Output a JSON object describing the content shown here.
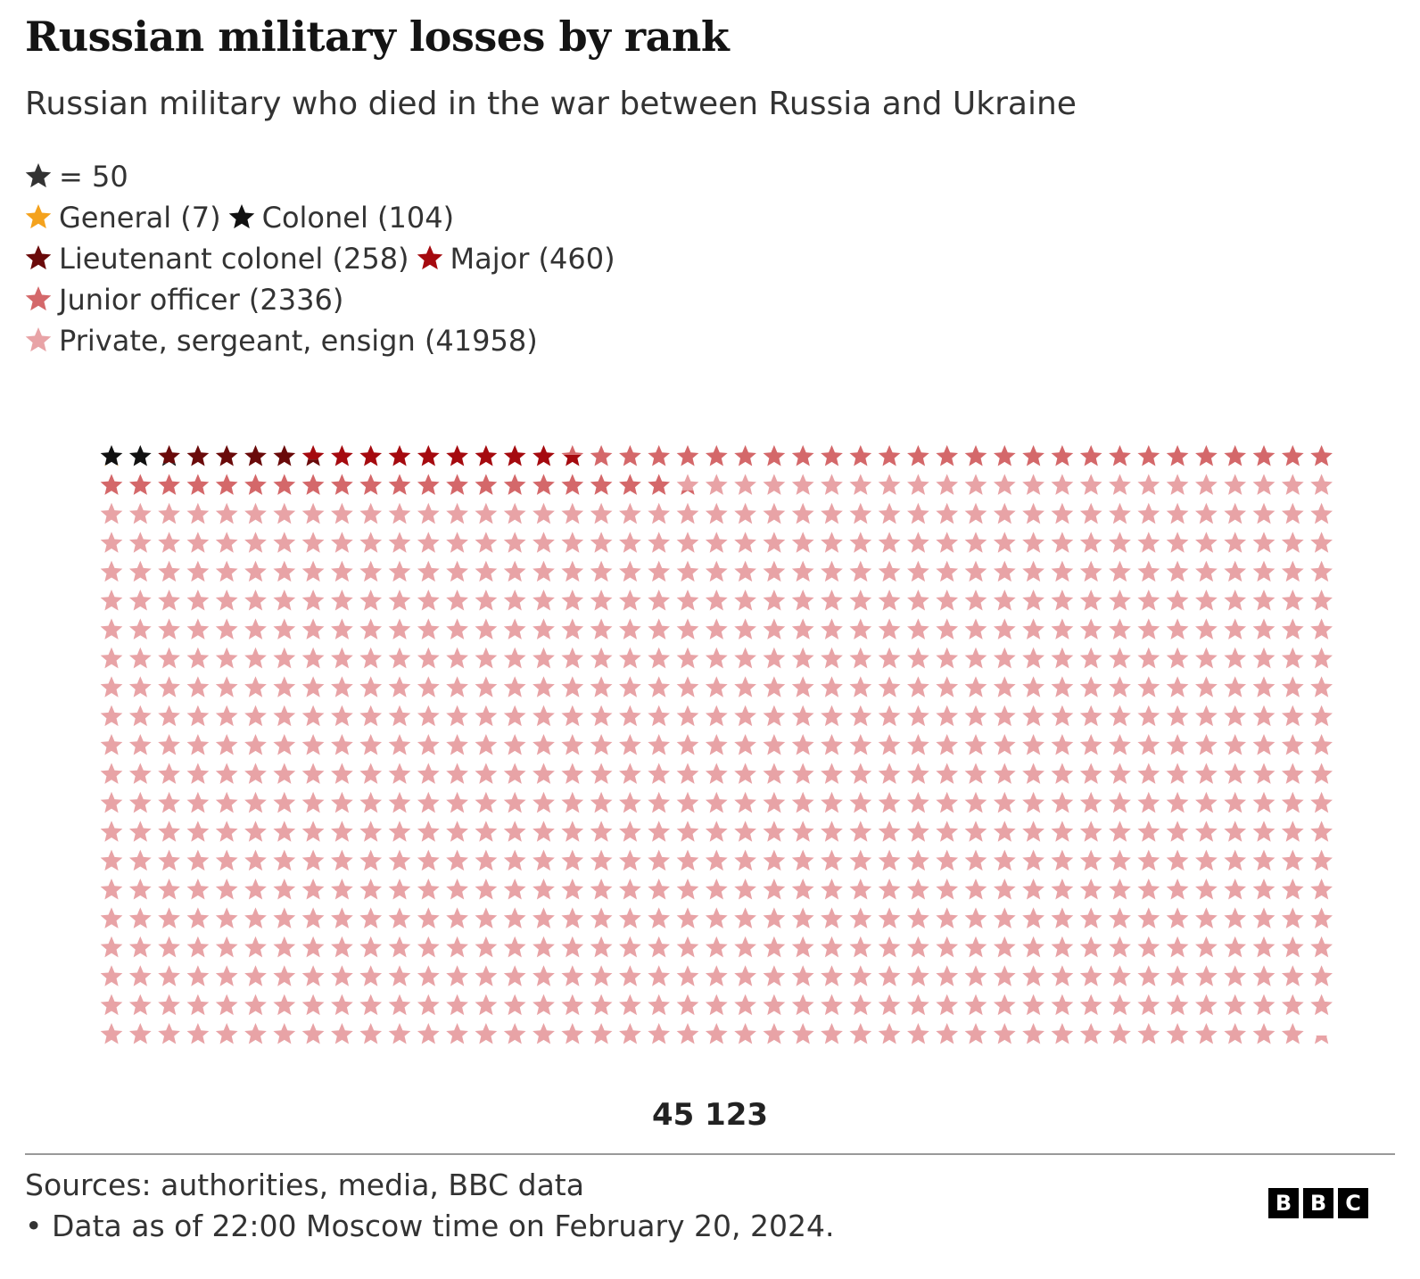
{
  "title": "Russian military losses by rank",
  "subtitle": "Russian military who died in the war between Russia and Ukraine",
  "legend": {
    "unit_label": "= 50",
    "unit_color": "#333333",
    "items": [
      {
        "label": "General (7)",
        "color": "#f4a21d"
      },
      {
        "label": "Colonel (104)",
        "color": "#111111"
      },
      {
        "label": "Lieutenant colonel (258)",
        "color": "#6a0a0a"
      },
      {
        "label": "Major (460)",
        "color": "#a50a0f"
      },
      {
        "label": "Junior officer (2336)",
        "color": "#d4686a"
      },
      {
        "label": "Private, sergeant, ensign (41958)",
        "color": "#e8a3a6"
      }
    ]
  },
  "chart_data": {
    "type": "pictogram",
    "unit_value": 50,
    "categories": [
      "General",
      "Colonel",
      "Lieutenant colonel",
      "Major",
      "Junior officer",
      "Private, sergeant, ensign"
    ],
    "values": [
      7,
      104,
      258,
      460,
      2336,
      41958
    ],
    "colors": [
      "#f4a21d",
      "#111111",
      "#6a0a0a",
      "#a50a0f",
      "#d4686a",
      "#e8a3a6"
    ],
    "total": 45123
  },
  "total_label": "45 123",
  "footer": {
    "source": "Sources: authorities, media, BBC data",
    "note": "• Data as of 22:00 Moscow time on February 20, 2024."
  },
  "logo": {
    "letters": [
      "B",
      "B",
      "C"
    ]
  }
}
